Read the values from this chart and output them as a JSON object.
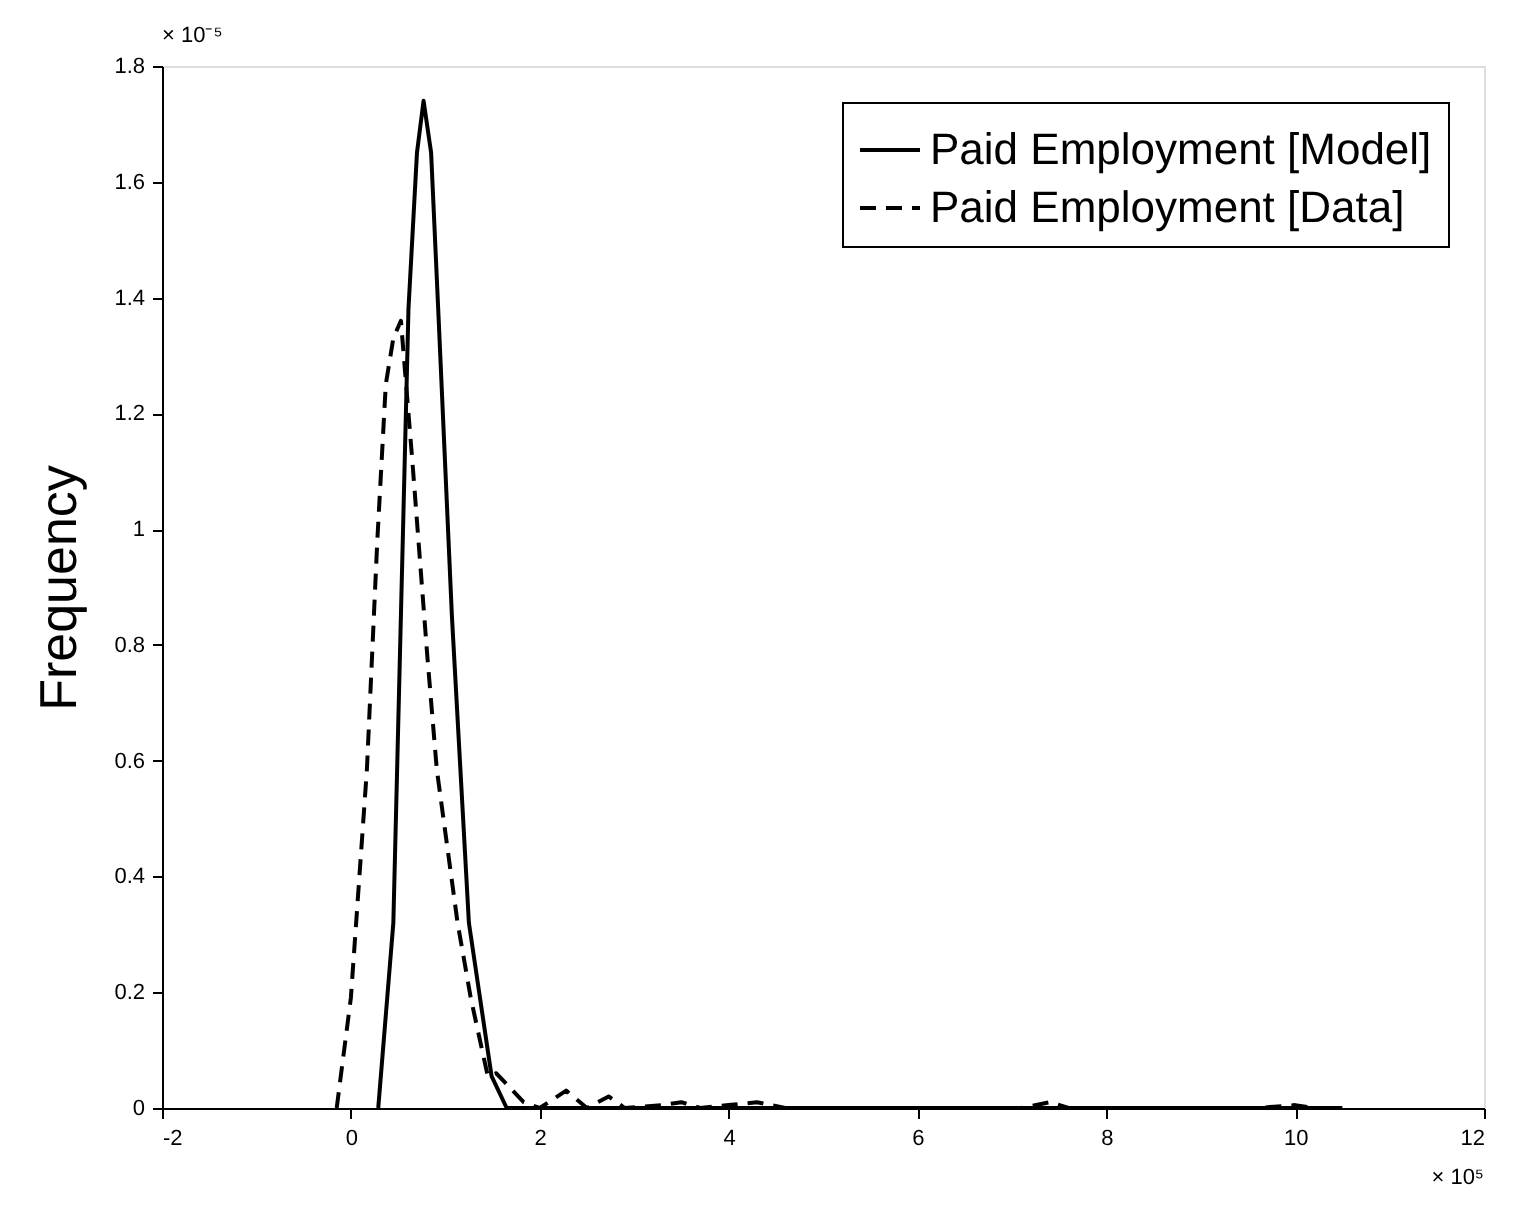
{
  "chart_data": {
    "type": "line",
    "ylabel": "Frequency",
    "xlim": [
      -2,
      12
    ],
    "xticks": [
      -2,
      0,
      2,
      4,
      6,
      8,
      10,
      12
    ],
    "ylim": [
      0,
      1.8
    ],
    "yticks": [
      0,
      0.2,
      0.4,
      0.6,
      0.8,
      1,
      1.2,
      1.4,
      1.6,
      1.8
    ],
    "grid": false,
    "legend": "top right",
    "marker": "none",
    "annotations": [
      "× 10⁻⁵",
      "× 10⁵"
    ],
    "series": [
      {
        "name": "Paid Employment [Model]",
        "color": "#000000",
        "line_style": "solid",
        "x": [
          0.29,
          0.45,
          0.53,
          0.61,
          0.7,
          0.77,
          0.85,
          0.925,
          1.07,
          1.25,
          1.49,
          1.65,
          2,
          3,
          4,
          6,
          8,
          10.5
        ],
        "values": [
          0,
          0.32,
          0.85,
          1.38,
          1.65,
          1.74,
          1.65,
          1.38,
          0.85,
          0.32,
          0.055,
          0,
          0,
          0,
          0,
          0,
          0,
          0
        ]
      },
      {
        "name": "Paid Employment [Data]",
        "color": "#000000",
        "line_style": "dashed",
        "x": [
          -0.15,
          0,
          0.17,
          0.28,
          0.37,
          0.45,
          0.53,
          0.65,
          0.81,
          0.91,
          1.13,
          1.27,
          1.45,
          1.54,
          1.83,
          2.0,
          2.28,
          2.5,
          2.73,
          2.9,
          3.3,
          3.5,
          3.7,
          4.0,
          4.3,
          4.6,
          5,
          7.1,
          7.4,
          7.6,
          9.6,
          10.0,
          10.2
        ],
        "values": [
          0,
          0.19,
          0.585,
          0.98,
          1.25,
          1.33,
          1.36,
          1.12,
          0.78,
          0.585,
          0.32,
          0.19,
          0.055,
          0.06,
          0.01,
          0,
          0.03,
          0,
          0.02,
          0,
          0.005,
          0.01,
          0,
          0.005,
          0.01,
          0,
          0,
          0,
          0.01,
          0,
          0,
          0.005,
          0
        ]
      }
    ]
  }
}
